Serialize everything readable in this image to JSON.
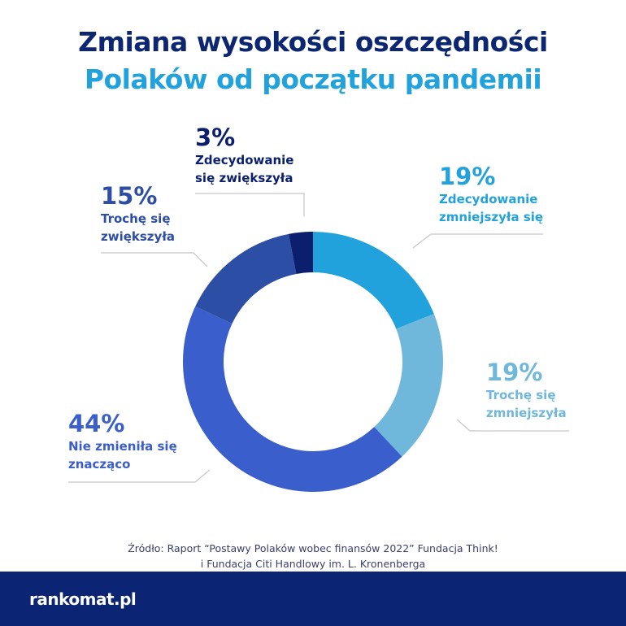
{
  "title_line1": "Zmiana wysokości oszczędności",
  "title_line2": "Polaków od początku pandemii",
  "chart_data": {
    "type": "pie",
    "variant": "donut",
    "title": "Zmiana wysokości oszczędności Polaków od początku pandemii",
    "unit": "%",
    "slices": [
      {
        "label": "Zdecydowanie zmniejszyła się",
        "line1": "Zdecydowanie",
        "line2": "zmniejszyła się",
        "value": 19,
        "pct": "19%",
        "color": "#22a2dc"
      },
      {
        "label": "Trochę się zmniejszyła",
        "line1": "Trochę się",
        "line2": "zmniejszyła",
        "value": 19,
        "pct": "19%",
        "color": "#6fb7db"
      },
      {
        "label": "Nie zmieniła się znacząco",
        "line1": "Nie zmieniła się",
        "line2": "znacząco",
        "value": 44,
        "pct": "44%",
        "color": "#3a5ecb"
      },
      {
        "label": "Trochę się zwiększyła",
        "line1": "Trochę się",
        "line2": "zwiększyła",
        "value": 15,
        "pct": "15%",
        "color": "#2d4ea5"
      },
      {
        "label": "Zdecydowanie się zwiększyła",
        "line1": "Zdecydowanie",
        "line2": "się zwiększyła",
        "value": 3,
        "pct": "3%",
        "color": "#0b1f6e"
      }
    ]
  },
  "source_line1": "Źródło: Raport “Postawy Polaków wobec finansów 2022” Fundacja Think!",
  "source_line2": "i Fundacja Citi Handlowy im. L. Kronenberga",
  "logo": "rankomat.pl"
}
